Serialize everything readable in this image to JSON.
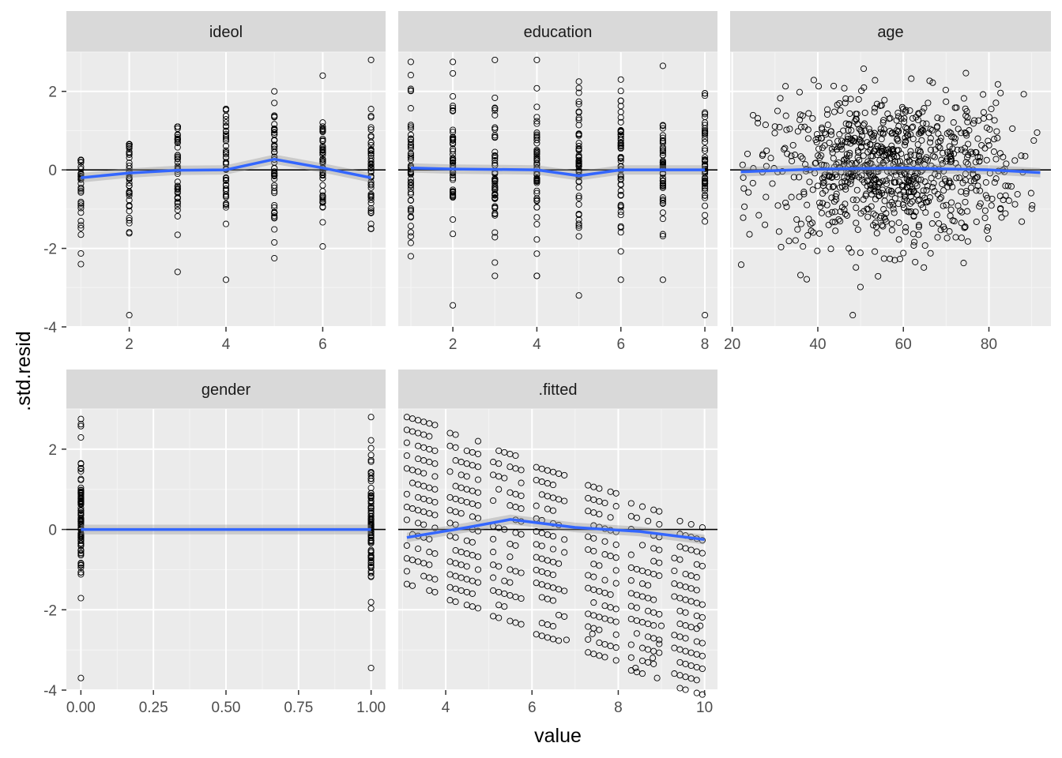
{
  "figure": {
    "x_title": "value",
    "y_title": ".std.resid"
  },
  "colors": {
    "panel_bg": "#EBEBEB",
    "strip_bg": "#D9D9D9",
    "grid_major": "#FFFFFF",
    "grid_minor": "#F5F5F5",
    "point_stroke": "#000000",
    "smooth_line": "#3366FF",
    "ribbon": "#999999",
    "zero_line": "#000000"
  },
  "chart_data": [
    {
      "type": "scatter",
      "facet": "ideol",
      "title": "ideol",
      "xlim": [
        0.7,
        7.3
      ],
      "ylim": [
        -4,
        3
      ],
      "xticks": [
        2,
        4,
        6
      ],
      "yticks": [
        -4,
        -2,
        0,
        2
      ],
      "x_levels": [
        1,
        2,
        3,
        4,
        5,
        6,
        7
      ],
      "y_ranges": [
        [
          -2.4,
          0.25
        ],
        [
          -3.7,
          0.65
        ],
        [
          -2.6,
          1.1
        ],
        [
          -2.8,
          1.55
        ],
        [
          -2.25,
          2.0
        ],
        [
          -1.95,
          2.4
        ],
        [
          -1.5,
          2.8
        ]
      ],
      "smooth": {
        "x": [
          1,
          2,
          3,
          4,
          5,
          6,
          7
        ],
        "y": [
          -0.2,
          -0.08,
          -0.01,
          0.0,
          0.27,
          0.05,
          -0.2
        ]
      },
      "hline": 0
    },
    {
      "type": "scatter",
      "facet": "education",
      "title": "education",
      "xlim": [
        0.7,
        8.3
      ],
      "ylim": [
        -4,
        3
      ],
      "xticks": [
        2,
        4,
        6,
        8
      ],
      "yticks": [
        -4,
        -2,
        0,
        2
      ],
      "x_levels": [
        1,
        2,
        3,
        4,
        5,
        6,
        7,
        8
      ],
      "y_ranges": [
        [
          -2.2,
          2.75
        ],
        [
          -3.45,
          2.75
        ],
        [
          -2.7,
          2.8
        ],
        [
          -2.7,
          2.8
        ],
        [
          -3.2,
          2.25
        ],
        [
          -2.8,
          2.3
        ],
        [
          -2.8,
          2.65
        ],
        [
          -3.7,
          1.95
        ]
      ],
      "smooth": {
        "x": [
          1,
          2,
          3,
          4,
          5,
          6,
          7,
          8
        ],
        "y": [
          0.05,
          0.02,
          0.01,
          0.0,
          -0.15,
          0.0,
          0.0,
          0.0
        ]
      },
      "hline": 0
    },
    {
      "type": "scatter",
      "facet": "age",
      "title": "age",
      "xlim": [
        19.5,
        94.5
      ],
      "ylim": [
        -4,
        3
      ],
      "xticks": [
        20,
        40,
        60,
        80
      ],
      "yticks": [
        -4,
        -2,
        0,
        2
      ],
      "x_range": [
        22,
        92
      ],
      "y_range": [
        -3.7,
        2.8
      ],
      "smooth": {
        "x": [
          22,
          40,
          60,
          80,
          92
        ],
        "y": [
          -0.05,
          0.02,
          0.05,
          0.0,
          -0.07
        ]
      },
      "hline": 0
    },
    {
      "type": "scatter",
      "facet": "gender",
      "title": "gender",
      "xlim": [
        -0.05,
        1.05
      ],
      "ylim": [
        -4,
        3
      ],
      "xticks": [
        0.0,
        0.25,
        0.5,
        0.75,
        1.0
      ],
      "xtick_labels": [
        "0.00",
        "0.25",
        "0.50",
        "0.75",
        "1.00"
      ],
      "yticks": [
        -4,
        -2,
        0,
        2
      ],
      "x_levels": [
        0,
        1
      ],
      "y_ranges": [
        [
          -3.7,
          2.75
        ],
        [
          -3.45,
          2.8
        ]
      ],
      "smooth": {
        "x": [
          0,
          1
        ],
        "y": [
          0.0,
          0.0
        ]
      },
      "hline": 0
    },
    {
      "type": "scatter",
      "facet": ".fitted",
      "title": ".fitted",
      "xlim": [
        2.9,
        10.3
      ],
      "ylim": [
        -4,
        3
      ],
      "xticks": [
        4,
        6,
        8,
        10
      ],
      "yticks": [
        -4,
        -2,
        0,
        2
      ],
      "smooth": {
        "x": [
          3.1,
          4.5,
          5.5,
          7.0,
          8.5,
          10.0
        ],
        "y": [
          -0.2,
          0.05,
          0.25,
          0.05,
          -0.05,
          -0.25
        ]
      },
      "hline": 0
    }
  ]
}
